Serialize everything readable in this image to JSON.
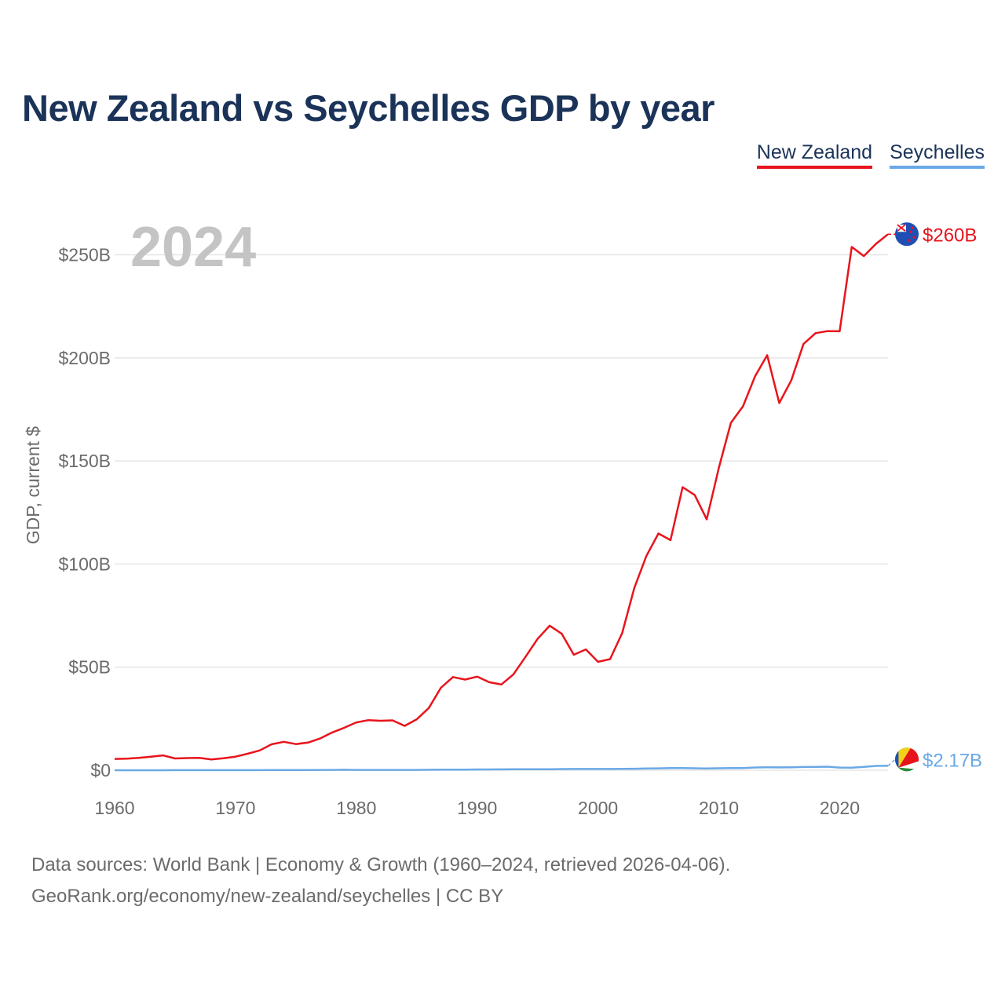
{
  "title": "New Zealand vs Seychelles GDP by year",
  "legend": {
    "new_zealand": "New Zealand",
    "seychelles": "Seychelles"
  },
  "year_label": "2024",
  "footer": {
    "line1": "Data sources: World Bank | Economy & Growth (1960–2024, retrieved 2026-04-06).",
    "line2": "GeoRank.org/economy/new-zealand/seychelles | CC BY"
  },
  "colors": {
    "new_zealand": "#e8141c",
    "seychelles": "#6aa9e6",
    "grid": "#e6e6e6",
    "axis_text": "#6b6b6b",
    "year_watermark": "#c4c4c4"
  },
  "chart_data": {
    "type": "line",
    "title": "New Zealand vs Seychelles GDP by year",
    "ylabel": "GDP, current $",
    "xlabel": "",
    "ylim": [
      0,
      270
    ],
    "xlim": [
      1960,
      2024
    ],
    "yticks": [
      0,
      50,
      100,
      150,
      200,
      250
    ],
    "ytick_labels": [
      "$0",
      "$50B",
      "$100B",
      "$150B",
      "$200B",
      "$250B"
    ],
    "xticks": [
      1960,
      1970,
      1980,
      1990,
      2000,
      2010,
      2020
    ],
    "xtick_labels": [
      "1960",
      "1970",
      "1980",
      "1990",
      "2000",
      "2010",
      "2020"
    ],
    "units": "billions USD",
    "x": [
      1960,
      1961,
      1962,
      1963,
      1964,
      1965,
      1966,
      1967,
      1968,
      1969,
      1970,
      1971,
      1972,
      1973,
      1974,
      1975,
      1976,
      1977,
      1978,
      1979,
      1980,
      1981,
      1982,
      1983,
      1984,
      1985,
      1986,
      1987,
      1988,
      1989,
      1990,
      1991,
      1992,
      1993,
      1994,
      1995,
      1996,
      1997,
      1998,
      1999,
      2000,
      2001,
      2002,
      2003,
      2004,
      2005,
      2006,
      2007,
      2008,
      2009,
      2010,
      2011,
      2012,
      2013,
      2014,
      2015,
      2016,
      2017,
      2018,
      2019,
      2020,
      2021,
      2022,
      2023,
      2024
    ],
    "series": [
      {
        "name": "New Zealand",
        "end_label": "$260B",
        "values": [
          5.5,
          5.6,
          6.0,
          6.6,
          7.2,
          5.7,
          5.9,
          6.0,
          5.2,
          5.8,
          6.6,
          8.0,
          9.6,
          12.6,
          13.8,
          12.7,
          13.4,
          15.4,
          18.3,
          20.6,
          23.2,
          24.3,
          24.0,
          24.2,
          21.5,
          24.7,
          30.2,
          40.0,
          45.2,
          44.0,
          45.4,
          42.7,
          41.6,
          46.5,
          55.0,
          63.7,
          70.1,
          66.2,
          56.0,
          58.6,
          52.6,
          53.9,
          66.5,
          88.3,
          103.9,
          114.8,
          111.6,
          137.3,
          133.5,
          121.7,
          146.6,
          168.5,
          176.5,
          191.1,
          201.3,
          178.1,
          189.2,
          206.7,
          212.0,
          213.0,
          212.9,
          253.8,
          249.4,
          255.3,
          260.0
        ]
      },
      {
        "name": "Seychelles",
        "end_label": "$2.17B",
        "values": [
          0.01,
          0.01,
          0.01,
          0.01,
          0.01,
          0.02,
          0.02,
          0.02,
          0.02,
          0.03,
          0.03,
          0.04,
          0.05,
          0.07,
          0.09,
          0.11,
          0.12,
          0.14,
          0.17,
          0.21,
          0.15,
          0.15,
          0.15,
          0.15,
          0.16,
          0.17,
          0.21,
          0.25,
          0.28,
          0.3,
          0.37,
          0.37,
          0.43,
          0.47,
          0.47,
          0.51,
          0.51,
          0.56,
          0.61,
          0.62,
          0.61,
          0.62,
          0.7,
          0.71,
          0.84,
          0.92,
          1.02,
          1.03,
          0.97,
          0.85,
          0.97,
          1.07,
          1.06,
          1.33,
          1.39,
          1.38,
          1.43,
          1.55,
          1.59,
          1.7,
          1.29,
          1.27,
          1.62,
          2.11,
          2.17
        ]
      }
    ]
  }
}
